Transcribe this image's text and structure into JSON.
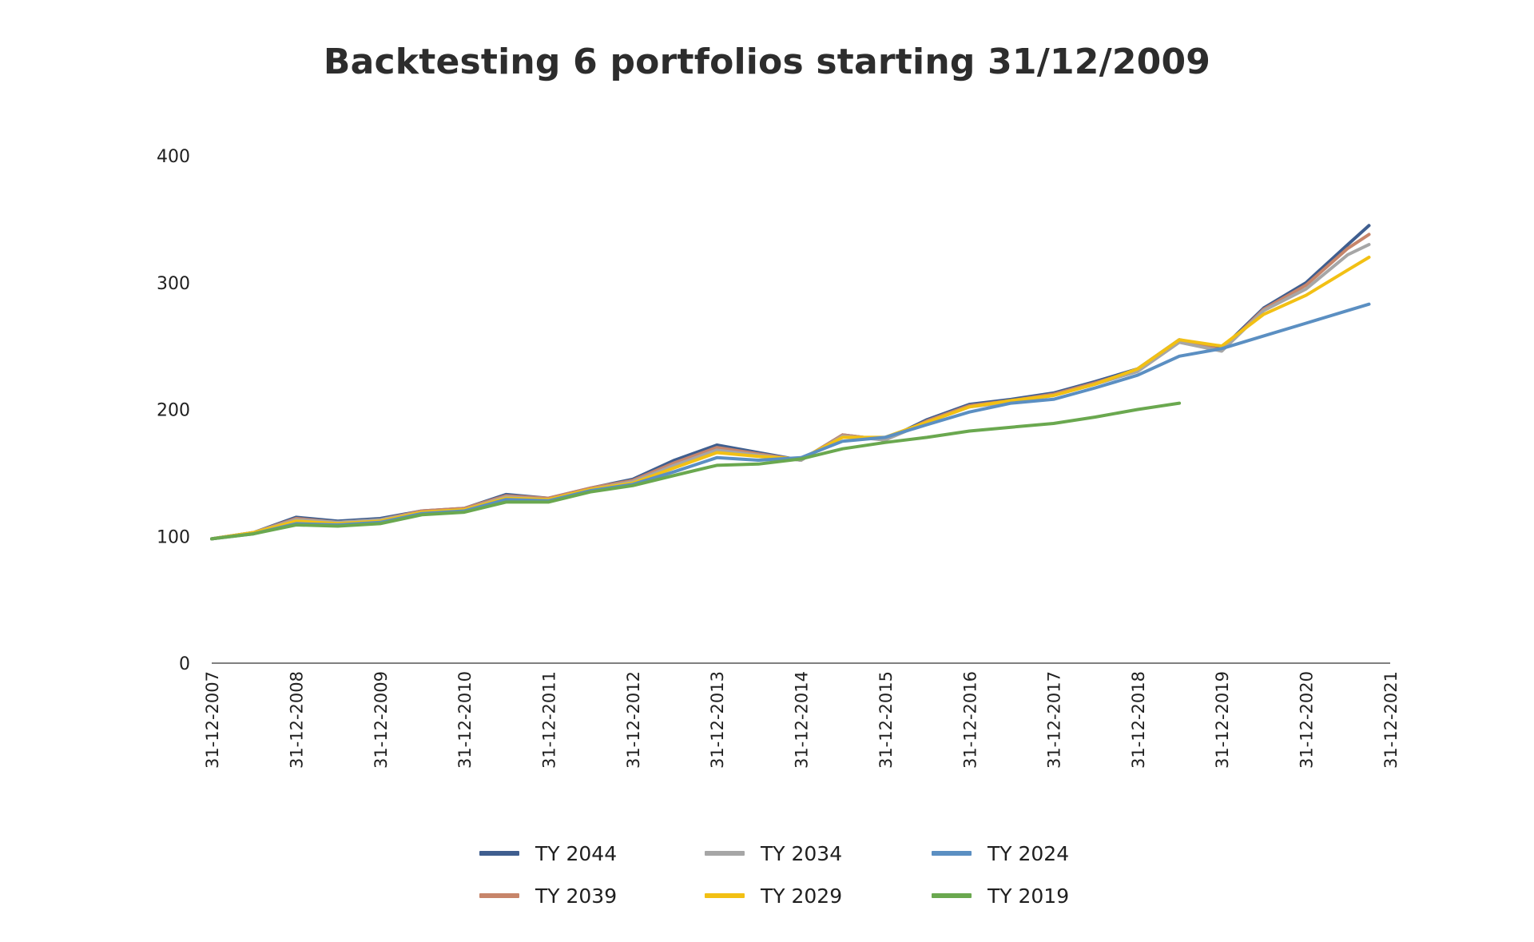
{
  "chart_data": {
    "type": "line",
    "title": "Backtesting 6 portfolios starting 31/12/2009",
    "xlabel": "",
    "ylabel": "",
    "x_ticks": [
      "31-12-2007",
      "31-12-2008",
      "31-12-2009",
      "31-12-2010",
      "31-12-2011",
      "31-12-2012",
      "31-12-2013",
      "31-12-2014",
      "31-12-2015",
      "31-12-2016",
      "31-12-2017",
      "31-12-2018",
      "31-12-2019",
      "31-12-2020",
      "31-12-2021"
    ],
    "y_ticks": [
      "0",
      "100",
      "200",
      "300",
      "400"
    ],
    "xlim": [
      "2007-12-31",
      "2021-12-31"
    ],
    "ylim": [
      0,
      400
    ],
    "grid": false,
    "legend_position": "bottom",
    "x": [
      "2007-12-31",
      "2008-06-30",
      "2008-12-31",
      "2009-06-30",
      "2009-12-31",
      "2010-06-30",
      "2010-12-31",
      "2011-06-30",
      "2011-12-31",
      "2012-06-30",
      "2012-12-31",
      "2013-06-30",
      "2013-12-31",
      "2014-06-30",
      "2014-12-31",
      "2015-06-30",
      "2015-12-31",
      "2016-06-30",
      "2016-12-31",
      "2017-06-30",
      "2017-12-31",
      "2018-06-30",
      "2018-12-31",
      "2019-06-30",
      "2019-12-31",
      "2020-06-30",
      "2020-12-31",
      "2021-06-30",
      "2021-09-30"
    ],
    "series": [
      {
        "name": "TY 2044",
        "color": "#3f5e8f",
        "values": [
          98,
          103,
          115,
          112,
          114,
          120,
          122,
          133,
          130,
          138,
          145,
          160,
          172,
          166,
          160,
          180,
          176,
          192,
          204,
          208,
          213,
          222,
          232,
          255,
          248,
          280,
          300,
          330,
          345
        ]
      },
      {
        "name": "TY 2039",
        "color": "#c7856a",
        "values": [
          98,
          103,
          114,
          111,
          113,
          120,
          122,
          132,
          130,
          138,
          144,
          158,
          170,
          165,
          160,
          180,
          176,
          191,
          203,
          207,
          212,
          221,
          231,
          254,
          247,
          279,
          298,
          327,
          338
        ]
      },
      {
        "name": "TY 2034",
        "color": "#a6a6a6",
        "values": [
          98,
          103,
          113,
          111,
          113,
          119,
          121,
          131,
          129,
          137,
          143,
          156,
          168,
          164,
          160,
          179,
          176,
          190,
          202,
          206,
          211,
          220,
          230,
          253,
          246,
          278,
          295,
          322,
          330
        ]
      },
      {
        "name": "TY 2029",
        "color": "#f2c014",
        "values": [
          98,
          103,
          112,
          110,
          112,
          119,
          121,
          130,
          129,
          137,
          142,
          154,
          166,
          163,
          161,
          178,
          178,
          190,
          202,
          207,
          211,
          220,
          232,
          255,
          250,
          275,
          290,
          310,
          320
        ]
      },
      {
        "name": "TY 2024",
        "color": "#5b8fc2",
        "values": [
          98,
          102,
          110,
          109,
          111,
          118,
          120,
          129,
          128,
          136,
          141,
          151,
          162,
          160,
          162,
          175,
          178,
          188,
          198,
          205,
          208,
          217,
          227,
          242,
          248,
          258,
          268,
          278,
          283
        ]
      },
      {
        "name": "TY 2019",
        "color": "#6aa84f",
        "values": [
          98,
          102,
          109,
          108,
          110,
          117,
          119,
          127,
          127,
          135,
          140,
          148,
          156,
          157,
          161,
          169,
          174,
          178,
          183,
          186,
          189,
          194,
          200,
          205,
          null,
          null,
          null,
          null,
          null
        ]
      }
    ]
  }
}
